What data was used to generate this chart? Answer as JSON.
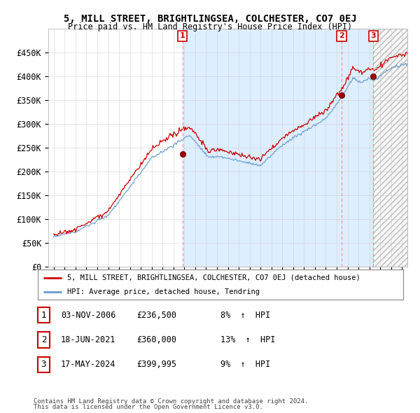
{
  "title": "5, MILL STREET, BRIGHTLINGSEA, COLCHESTER, CO7 0EJ",
  "subtitle": "Price paid vs. HM Land Registry's House Price Index (HPI)",
  "ylim": [
    0,
    500000
  ],
  "yticks": [
    0,
    50000,
    100000,
    150000,
    200000,
    250000,
    300000,
    350000,
    400000,
    450000
  ],
  "ytick_labels": [
    "£0",
    "£50K",
    "£100K",
    "£150K",
    "£200K",
    "£250K",
    "£300K",
    "£350K",
    "£400K",
    "£450K"
  ],
  "xlim_start": 1994.5,
  "xlim_end": 2027.5,
  "sale_color": "#cc0000",
  "hpi_color": "#6699cc",
  "vline_color": "#ff8888",
  "fill_color": "#ddeeff",
  "future_hatch_color": "#cccccc",
  "legend_sale_label": "5, MILL STREET, BRIGHTLINGSEA, COLCHESTER, CO7 0EJ (detached house)",
  "legend_hpi_label": "HPI: Average price, detached house, Tendring",
  "sale_events": [
    {
      "num": 1,
      "date": "03-NOV-2006",
      "price": 236500,
      "x": 2006.84,
      "pct": "8%",
      "dir": "↑"
    },
    {
      "num": 2,
      "date": "18-JUN-2021",
      "price": 360000,
      "x": 2021.46,
      "pct": "13%",
      "dir": "↑"
    },
    {
      "num": 3,
      "date": "17-MAY-2024",
      "price": 399995,
      "x": 2024.37,
      "pct": "9%",
      "dir": "↑"
    }
  ],
  "footer1": "Contains HM Land Registry data © Crown copyright and database right 2024.",
  "footer2": "This data is licensed under the Open Government Licence v3.0.",
  "background_color": "#ffffff",
  "plot_bg_color": "#ffffff",
  "grid_color": "#cccccc"
}
